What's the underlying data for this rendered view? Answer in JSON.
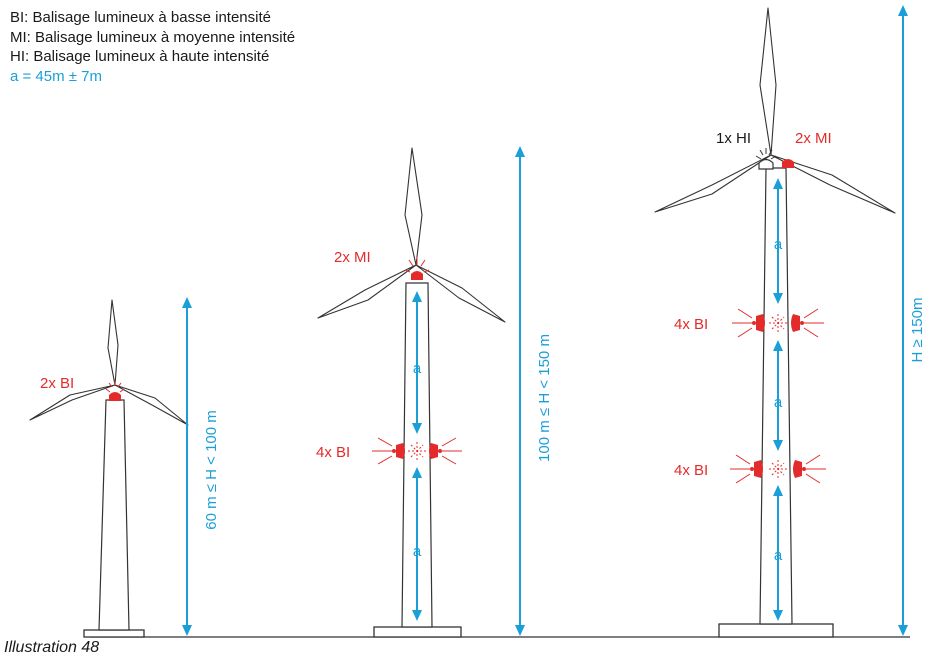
{
  "legend": {
    "bi": "BI: Balisage lumineux à basse intensité",
    "mi": "MI: Balisage lumineux à moyenne intensité",
    "hi": "HI: Balisage lumineux à haute intensité",
    "a_def": "a = 45m ± 7m"
  },
  "caption": "Illustration 48",
  "turbines": [
    {
      "lamp_label": "2x BI",
      "height_range": "60 m ≤ H < 100 m"
    },
    {
      "lamp_label": "2x MI",
      "mid_label": "4x BI",
      "height_range": "100 m ≤ H < 150 m",
      "a_label": "a"
    },
    {
      "top_left_label": "1x HI",
      "top_right_label": "2x MI",
      "mid_label": "4x BI",
      "low_label": "4x BI",
      "height_range": "H ≥ 150m",
      "a_label": "a"
    }
  ],
  "colors": {
    "marking": "#e32b2b",
    "dimension": "#1a9fd9",
    "outline": "#333333"
  }
}
